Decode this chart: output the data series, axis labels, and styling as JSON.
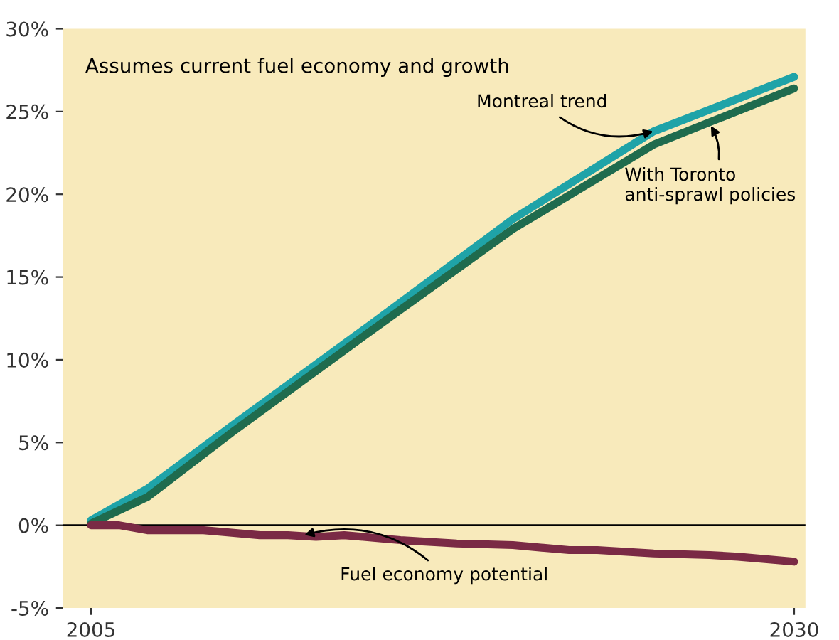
{
  "chart_data": {
    "type": "line",
    "annotations": [
      "Assumes current fuel economy and growth"
    ],
    "series": [
      {
        "name": "Montreal trend",
        "color": "#1fa3a8",
        "x": [
          2005,
          2007,
          2010,
          2015,
          2020,
          2025,
          2030
        ],
        "values": [
          0.3,
          2.2,
          6,
          12.2,
          18.5,
          23.8,
          27.1
        ]
      },
      {
        "name": "With Toronto anti-sprawl policies",
        "color": "#1f6b4e",
        "x": [
          2005,
          2007,
          2010,
          2015,
          2020,
          2025,
          2030
        ],
        "values": [
          0.1,
          1.7,
          5.6,
          11.8,
          17.9,
          23,
          26.4
        ]
      },
      {
        "name": "Fuel economy potential",
        "color": "#7a2a45",
        "x": [
          2005,
          2006,
          2007,
          2009,
          2011,
          2012,
          2013,
          2014,
          2016,
          2018,
          2020,
          2022,
          2023,
          2025,
          2027,
          2028,
          2030
        ],
        "values": [
          0,
          0,
          -0.3,
          -0.3,
          -0.6,
          -0.6,
          -0.7,
          -0.6,
          -0.9,
          -1.1,
          -1.2,
          -1.5,
          -1.5,
          -1.7,
          -1.8,
          -1.9,
          -2.2
        ]
      }
    ],
    "xlim": [
      2004,
      2030.4
    ],
    "xticks": [
      2005,
      2030
    ],
    "ylim": [
      -5,
      30
    ],
    "yticks": [
      {
        "value": -5,
        "label": "-5%"
      },
      {
        "value": 0,
        "label": "0%"
      },
      {
        "value": 5,
        "label": "5%"
      },
      {
        "value": 10,
        "label": "10%"
      },
      {
        "value": 15,
        "label": "15%"
      },
      {
        "value": 20,
        "label": "20%"
      },
      {
        "value": 25,
        "label": "25%"
      },
      {
        "value": 30,
        "label": "30%"
      }
    ],
    "ref_lines": [
      {
        "axis": "y",
        "value": 0,
        "color": "#000000"
      }
    ],
    "grid": false,
    "legend": false
  }
}
